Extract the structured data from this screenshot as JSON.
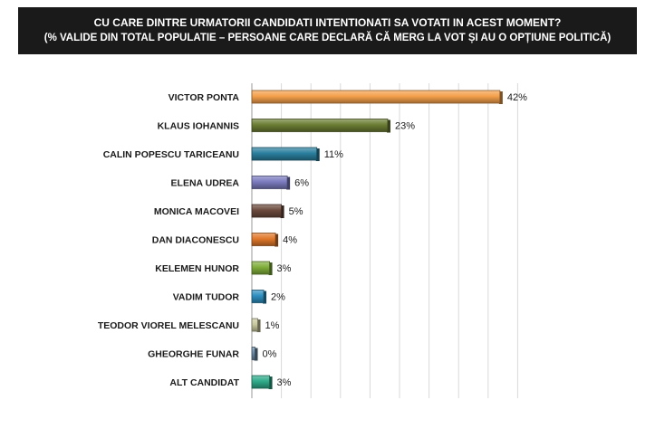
{
  "header": {
    "title": "CU CARE DINTRE URMATORII CANDIDATI INTENTIONATI SA VOTATI IN ACEST MOMENT?",
    "subtitle": "(% VALIDE DIN TOTAL POPULATIE – PERSOANE CARE DECLARĂ CĂ MERG LA VOT ȘI AU O OPȚIUNE POLITICĂ)"
  },
  "chart_data": {
    "type": "bar",
    "orientation": "horizontal",
    "categories": [
      "VICTOR PONTA",
      "KLAUS IOHANNIS",
      "CALIN POPESCU TARICEANU",
      "ELENA UDREA",
      "MONICA MACOVEI",
      "DAN DIACONESCU",
      "KELEMEN HUNOR",
      "VADIM TUDOR",
      "TEODOR VIOREL MELESCANU",
      "GHEORGHE FUNAR",
      "ALT CANDIDAT"
    ],
    "values": [
      42,
      23,
      11,
      6,
      5,
      4,
      3,
      2,
      1,
      0,
      3
    ],
    "value_labels": [
      "42%",
      "23%",
      "11%",
      "6%",
      "5%",
      "4%",
      "3%",
      "2%",
      "1%",
      "0%",
      "3%"
    ],
    "colors": [
      "#f4a04a",
      "#6b7d33",
      "#2a7f9e",
      "#7b7bbf",
      "#6b4a3c",
      "#e0782a",
      "#7fae3a",
      "#2d8fc0",
      "#c9c9a0",
      "#6b8ca8",
      "#2eab8a"
    ],
    "xlim": [
      0,
      45
    ],
    "grid": true,
    "legend": "none"
  }
}
